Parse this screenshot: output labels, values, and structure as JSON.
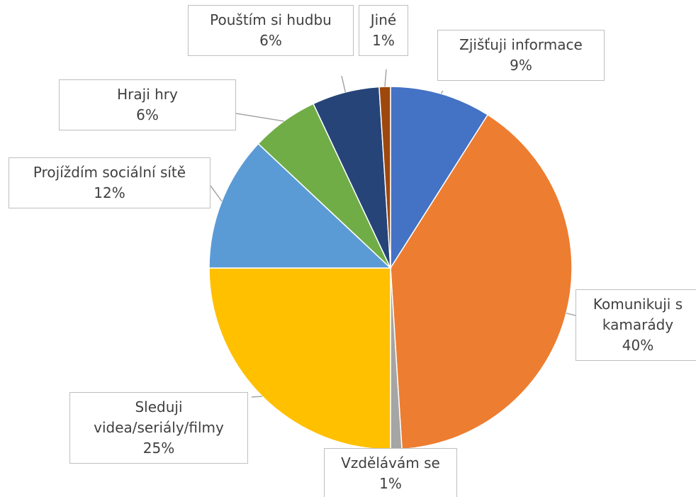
{
  "chart_data": {
    "type": "pie",
    "categories": [
      "Zjišťuji informace",
      "Komunikuji s kamarády",
      "Vzdělávám se",
      "Sleduji videa/seriály/filmy",
      "Projíždím sociální sítě",
      "Hraji hry",
      "Pouštím si hudbu",
      "Jiné"
    ],
    "values": [
      9,
      40,
      1,
      25,
      12,
      6,
      6,
      1
    ],
    "value_labels": [
      "9%",
      "40%",
      "1%",
      "25%",
      "12%",
      "6%",
      "6%",
      "1%"
    ],
    "colors": [
      "#4472c4",
      "#ed7d31",
      "#a5a5a5",
      "#ffc000",
      "#5b9bd5",
      "#70ad47",
      "#264478",
      "#9e480e"
    ]
  }
}
